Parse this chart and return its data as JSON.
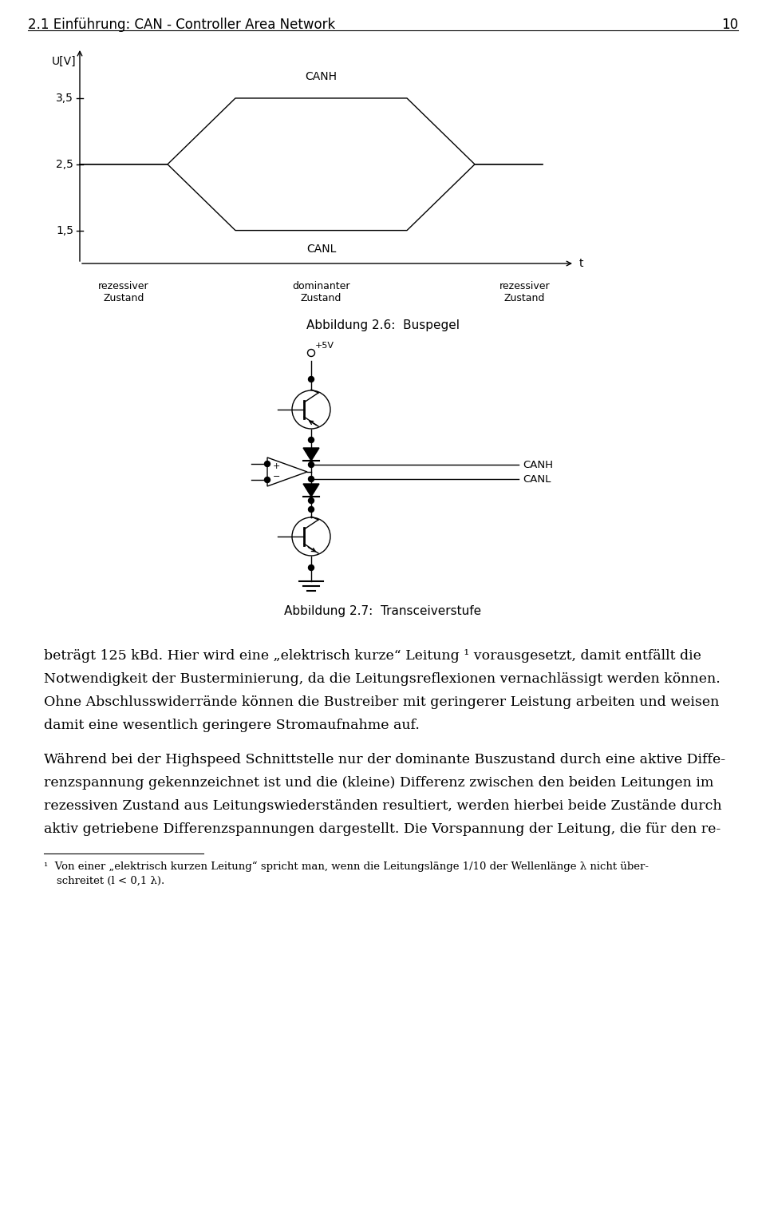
{
  "page_header": "2.1 Einführung: CAN - Controller Area Network",
  "page_number": "10",
  "background_color": "#ffffff",
  "text_color": "#000000",
  "fig_caption1": "Abbildung 2.6:  Buspegel",
  "fig_caption2": "Abbildung 2.7:  Transceiverstufe",
  "ylabel": "U[V]",
  "yticks": [
    1.5,
    2.5,
    3.5
  ],
  "canh_label": "CANH",
  "canl_label": "CANL",
  "x_labels": [
    [
      "rezessiver",
      "Zustand"
    ],
    [
      "dominanter",
      "Zustand"
    ],
    [
      "rezessiver",
      "Zustand"
    ]
  ],
  "t_label": "t",
  "body_lines_p1": [
    "beträgt 125 kBd. Hier wird eine „elektrisch kurze“ Leitung ¹ vorausgesetzt, damit entfällt die",
    "Notwendigkeit der Busterminierung, da die Leitungsreflexionen vernachlässigt werden können.",
    "Ohne Abschlusswiderrände können die Bustreiber mit geringerer Leistung arbeiten und weisen",
    "damit eine wesentlich geringere Stromaufnahme auf."
  ],
  "body_lines_p2": [
    "Während bei der Highspeed Schnittstelle nur der dominante Buszustand durch eine aktive Diffe-",
    "renzspannung gekennzeichnet ist und die (kleine) Differenz zwischen den beiden Leitungen im",
    "rezessiven Zustand aus Leitungswiederständen resultiert, werden hierbei beide Zustände durch",
    "aktiv getriebene Differenzspannungen dargestellt. Die Vorspannung der Leitung, die für den re-"
  ],
  "footnote1": "¹  Von einer „elektrisch kurzen Leitung“ spricht man, wenn die Leitungslänge 1/10 der Wellenlänge λ nicht über-",
  "footnote2": "schreitet (l < 0,1 λ)."
}
